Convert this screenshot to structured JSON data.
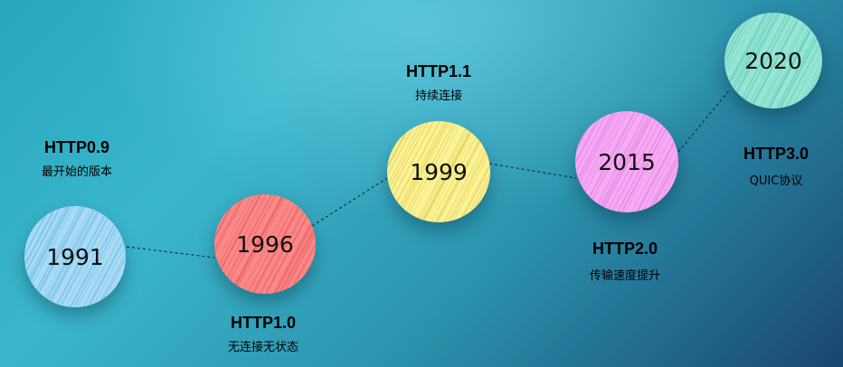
{
  "milestones": [
    {
      "year": "1991",
      "version": "HTTP0.9",
      "description": "最开始的版本",
      "color": "#a3d8f5",
      "hatch": "#6cbde9"
    },
    {
      "year": "1996",
      "version": "HTTP1.0",
      "description": "无连接无状态",
      "color": "#fb7f7f",
      "hatch": "#e85959"
    },
    {
      "year": "1999",
      "version": "HTTP1.1",
      "description": "持续连接",
      "color": "#fbf28f",
      "hatch": "#e3cf52"
    },
    {
      "year": "2015",
      "version": "HTTP2.0",
      "description": "传输速度提升",
      "color": "#f5a5f3",
      "hatch": "#e77fe3"
    },
    {
      "year": "2020",
      "version": "HTTP3.0",
      "description": "QUIC协议",
      "color": "#8fe3d1",
      "hatch": "#5ccdb6"
    }
  ]
}
